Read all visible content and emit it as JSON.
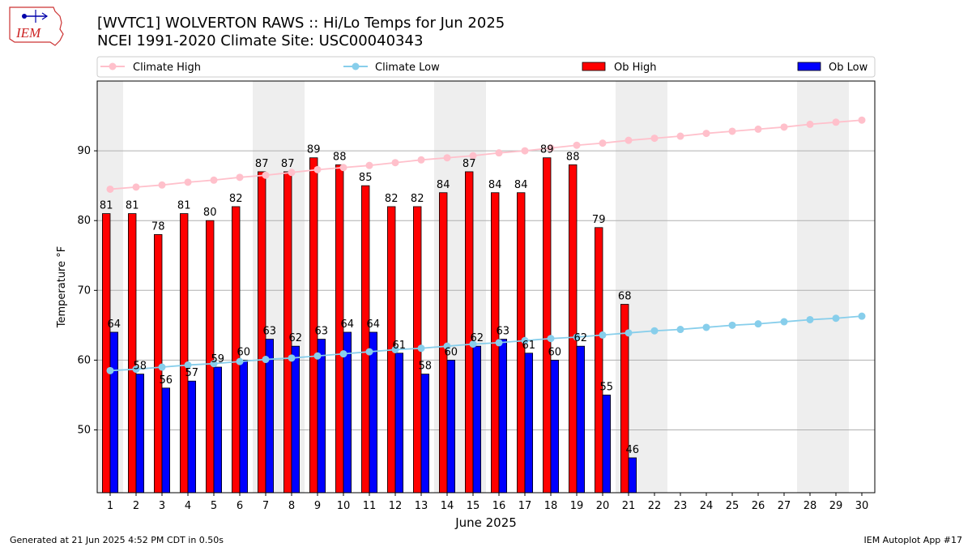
{
  "header": {
    "title_line1": "[WVTC1] WOLVERTON RAWS :: Hi/Lo Temps for Jun 2025",
    "title_line2": "NCEI 1991-2020 Climate Site: USC00040343",
    "logo_text": "IEM"
  },
  "footer": {
    "generated": "Generated at 21 Jun 2025 4:52 PM CDT in 0.50s",
    "app": "IEM Autoplot App #17"
  },
  "colors": {
    "ob_high": "#ff0000",
    "ob_low": "#0000ff",
    "climate_high": "#ffc0cb",
    "climate_low": "#87ceeb",
    "weekend_shade": "#eeeeee",
    "grid": "#b0b0b0"
  },
  "chart_data": {
    "type": "bar",
    "title": "[WVTC1] WOLVERTON RAWS :: Hi/Lo Temps for Jun 2025",
    "xlabel": "June 2025",
    "ylabel": "Temperature °F",
    "ylim": [
      41,
      100
    ],
    "yticks": [
      50,
      60,
      70,
      80,
      90
    ],
    "grid": "y",
    "legend_position": "top",
    "categories": [
      1,
      2,
      3,
      4,
      5,
      6,
      7,
      8,
      9,
      10,
      11,
      12,
      13,
      14,
      15,
      16,
      17,
      18,
      19,
      20,
      21,
      22,
      23,
      24,
      25,
      26,
      27,
      28,
      29,
      30
    ],
    "weekend_days": [
      1,
      7,
      8,
      14,
      15,
      21,
      22,
      28,
      29
    ],
    "series": [
      {
        "name": "Ob High",
        "type": "bar",
        "values": [
          81,
          81,
          78,
          81,
          80,
          82,
          87,
          87,
          89,
          88,
          85,
          82,
          82,
          84,
          87,
          84,
          84,
          89,
          88,
          79,
          68,
          null,
          null,
          null,
          null,
          null,
          null,
          null,
          null,
          null
        ]
      },
      {
        "name": "Ob Low",
        "type": "bar",
        "values": [
          64,
          58,
          56,
          57,
          59,
          60,
          63,
          62,
          63,
          64,
          64,
          61,
          58,
          60,
          62,
          63,
          61,
          60,
          62,
          55,
          46,
          null,
          null,
          null,
          null,
          null,
          null,
          null,
          null,
          null
        ]
      },
      {
        "name": "Climate High",
        "type": "line",
        "values": [
          84.5,
          84.8,
          85.1,
          85.5,
          85.8,
          86.2,
          86.5,
          86.9,
          87.3,
          87.6,
          87.9,
          88.3,
          88.7,
          89.0,
          89.3,
          89.7,
          90.0,
          90.4,
          90.8,
          91.1,
          91.5,
          91.8,
          92.1,
          92.5,
          92.8,
          93.1,
          93.4,
          93.8,
          94.1,
          94.4
        ]
      },
      {
        "name": "Climate Low",
        "type": "line",
        "values": [
          58.5,
          58.7,
          59.0,
          59.3,
          59.5,
          59.8,
          60.1,
          60.3,
          60.6,
          60.9,
          61.2,
          61.5,
          61.7,
          62.0,
          62.3,
          62.5,
          62.8,
          63.1,
          63.3,
          63.6,
          63.9,
          64.2,
          64.4,
          64.7,
          65.0,
          65.2,
          65.5,
          65.8,
          66.0,
          66.3
        ]
      }
    ]
  }
}
